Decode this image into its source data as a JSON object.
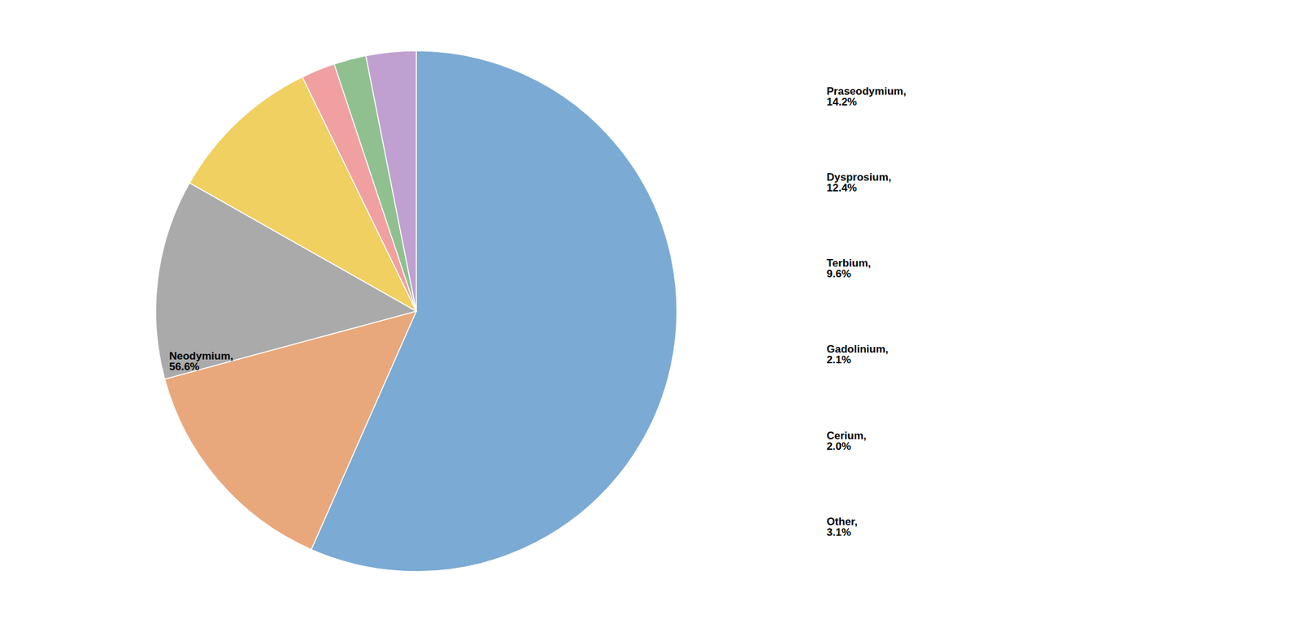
{
  "chart_data": {
    "type": "pie",
    "categories": [
      "Neodymium",
      "Praseodymium",
      "Dysprosium",
      "Terbium",
      "Gadolinium",
      "Cerium",
      "Other"
    ],
    "values": [
      56.6,
      14.2,
      12.4,
      9.6,
      2.1,
      2.0,
      3.1
    ],
    "colors": [
      "#7BAAD4",
      "#E8A87C",
      "#AAAAAA",
      "#F0D060",
      "#F0A0A0",
      "#90C090",
      "#C0A0D0"
    ],
    "value_labels": [
      "Neodymium,\n56.6%",
      "Praseodymium,\n14.2%",
      "Dysprosium,\n12.4%",
      "Terbium,\n9.6%",
      "Gadolinium,\n2.1%",
      "Cerium,\n2.0%",
      "Other,\n3.1%"
    ],
    "data_labels": true
  }
}
